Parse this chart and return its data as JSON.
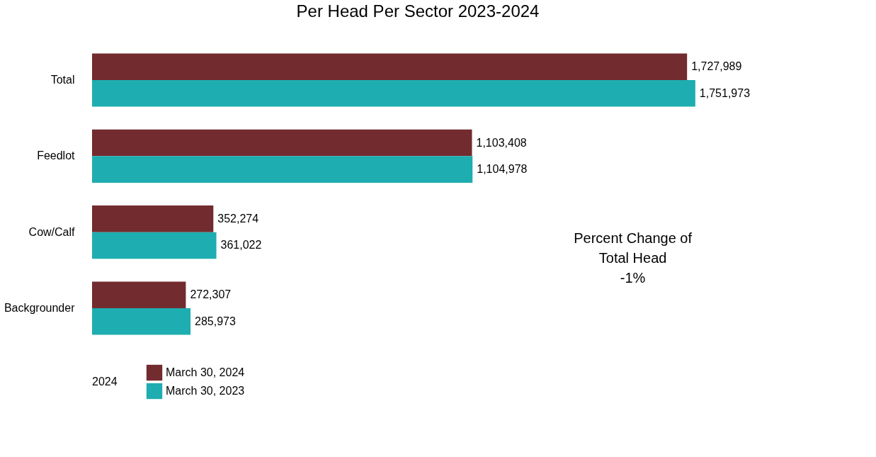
{
  "chart_data": {
    "type": "bar",
    "orientation": "horizontal",
    "title": "Per Head Per Sector 2023-2024",
    "categories": [
      "Total",
      "Feedlot",
      "Cow/Calf",
      "Backgrounder"
    ],
    "series": [
      {
        "name": "March 30, 2024",
        "color": "#722b2f",
        "values": [
          1727989,
          1103408,
          352274,
          272307
        ],
        "value_labels": [
          "1,727,989",
          "1,103,408",
          "352,274",
          "272,307"
        ]
      },
      {
        "name": "March 30, 2023",
        "color": "#1eadb0",
        "values": [
          1751973,
          1104978,
          361022,
          285973
        ],
        "value_labels": [
          "1,751,973",
          "1,104,978",
          "361,022",
          "285,973"
        ]
      }
    ],
    "legend": "bottom left",
    "legend_title": "2024",
    "grid": false,
    "tick_labels": "y",
    "annotations": [
      "Percent Change of\nTotal Head\n-1%"
    ]
  }
}
